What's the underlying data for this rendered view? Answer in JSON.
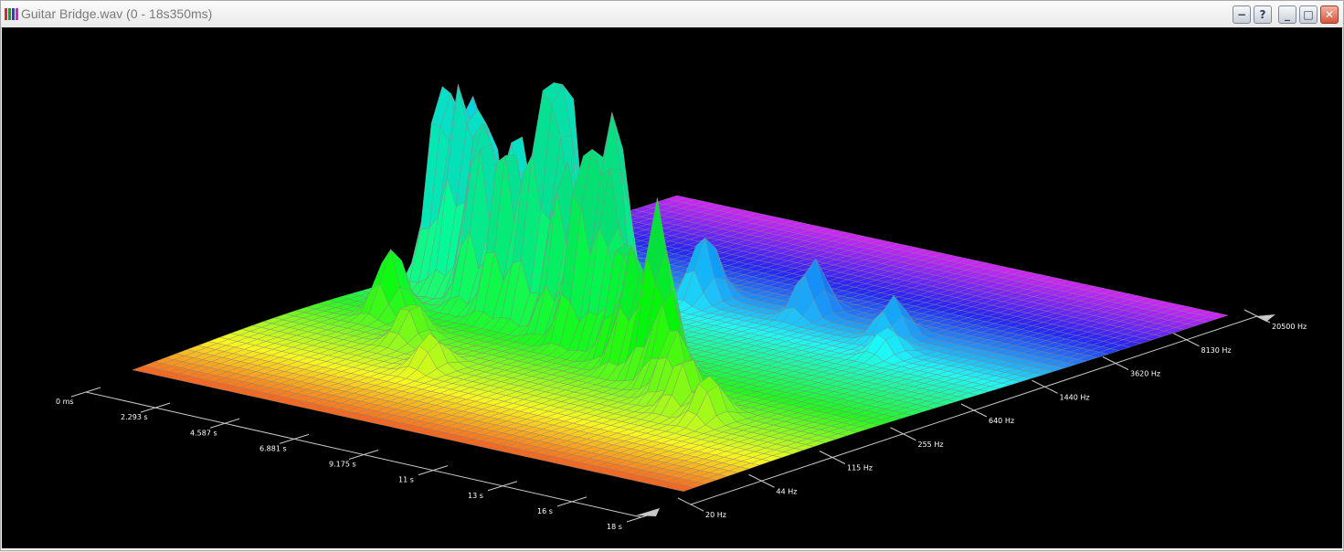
{
  "window": {
    "title": "Guitar Bridge.wav (0 - 18s350ms)",
    "buttons": {
      "rollup": "−",
      "help": "?",
      "minimize": "_",
      "maximize": "□",
      "close": "✕"
    }
  },
  "colors": {
    "background": "#000000",
    "axis": "#c8c8c8",
    "low_level": "#d23a2a",
    "mid_level": "#f2e81c",
    "high_level": "#3cdc5a",
    "treble_level": "#2040ff",
    "top_level": "#ff33ff"
  },
  "chart_data": {
    "type": "surface",
    "time_axis": {
      "ticks": [
        "0 ms",
        "2.293 s",
        "4.587 s",
        "6.881 s",
        "9.175 s",
        "11 s",
        "13 s",
        "16 s",
        "18 s"
      ],
      "range_s": [
        0,
        18.35
      ]
    },
    "frequency_axis": {
      "scale": "log",
      "ticks": [
        "20 Hz",
        "44 Hz",
        "115 Hz",
        "255 Hz",
        "640 Hz",
        "1440 Hz",
        "3620 Hz",
        "8130 Hz",
        "20500 Hz"
      ],
      "range_hz": [
        20,
        20500
      ]
    },
    "peaks": [
      {
        "t": 0.4,
        "f": 900,
        "h": 0.35
      },
      {
        "t": 0.7,
        "f": 1200,
        "h": 0.55
      },
      {
        "t": 1.0,
        "f": 700,
        "h": 0.9
      },
      {
        "t": 1.3,
        "f": 1000,
        "h": 0.75
      },
      {
        "t": 1.8,
        "f": 650,
        "h": 0.85
      },
      {
        "t": 2.3,
        "f": 800,
        "h": 0.62
      },
      {
        "t": 2.7,
        "f": 600,
        "h": 0.7
      },
      {
        "t": 3.2,
        "f": 500,
        "h": 0.66
      },
      {
        "t": 3.6,
        "f": 700,
        "h": 0.75
      },
      {
        "t": 4.3,
        "f": 450,
        "h": 0.85
      },
      {
        "t": 4.8,
        "f": 700,
        "h": 0.95
      },
      {
        "t": 5.2,
        "f": 450,
        "h": 0.78
      },
      {
        "t": 5.5,
        "f": 600,
        "h": 1.0
      },
      {
        "t": 5.9,
        "f": 500,
        "h": 0.65
      },
      {
        "t": 6.5,
        "f": 400,
        "h": 0.72
      },
      {
        "t": 7.1,
        "f": 500,
        "h": 0.58
      },
      {
        "t": 7.5,
        "f": 350,
        "h": 0.82
      },
      {
        "t": 8.0,
        "f": 450,
        "h": 0.9
      },
      {
        "t": 8.4,
        "f": 350,
        "h": 0.63
      },
      {
        "t": 9.3,
        "f": 300,
        "h": 0.58
      },
      {
        "t": 10.1,
        "f": 250,
        "h": 0.55
      },
      {
        "t": 11.0,
        "f": 240,
        "h": 0.78
      },
      {
        "t": 11.8,
        "f": 200,
        "h": 0.43
      },
      {
        "t": 12.6,
        "f": 160,
        "h": 0.32
      },
      {
        "t": 13.5,
        "f": 130,
        "h": 0.25
      },
      {
        "t": 14.6,
        "f": 115,
        "h": 0.2
      },
      {
        "t": 3.0,
        "f": 2500,
        "h": 0.22
      },
      {
        "t": 7.0,
        "f": 2000,
        "h": 0.3
      },
      {
        "t": 10.0,
        "f": 2500,
        "h": 0.25
      },
      {
        "t": 13.0,
        "f": 2200,
        "h": 0.18
      },
      {
        "t": 14.0,
        "f": 1400,
        "h": 0.12
      },
      {
        "t": 2.0,
        "f": 250,
        "h": 0.3
      },
      {
        "t": 4.0,
        "f": 150,
        "h": 0.18
      },
      {
        "t": 6.0,
        "f": 90,
        "h": 0.15
      }
    ]
  }
}
